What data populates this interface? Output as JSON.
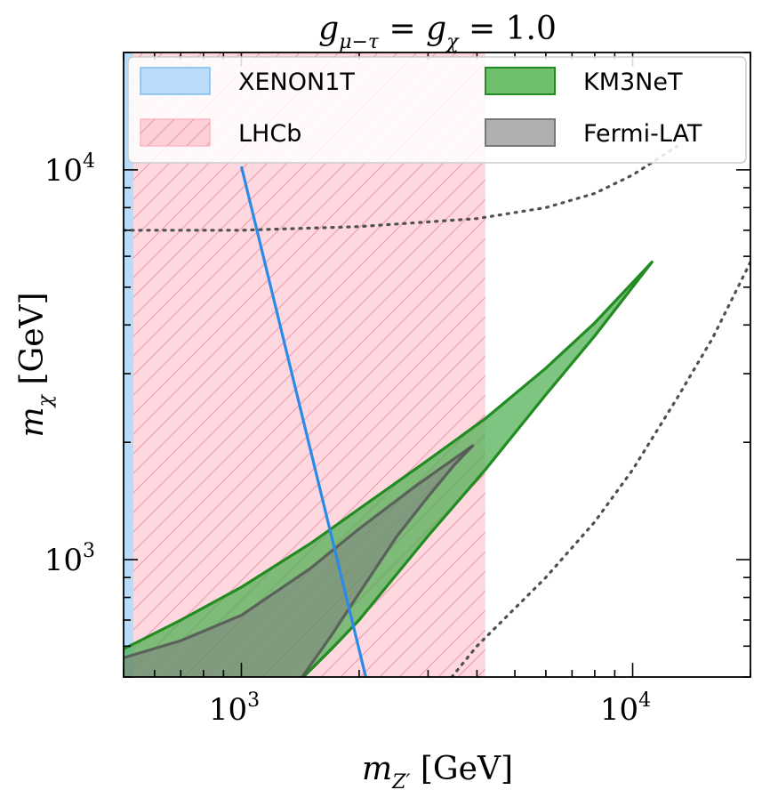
{
  "chart_data": {
    "type": "area",
    "title": "g_{μ−τ} = g_χ = 1.0",
    "title_parts": {
      "g1": "g",
      "sub1": "μ−τ",
      "eq1": " = ",
      "g2": "g",
      "sub2": "χ",
      "eq2": " = 1.0"
    },
    "xlabel_parts": {
      "m": "m",
      "sub": "Z′",
      "unit": " [GeV]"
    },
    "ylabel_parts": {
      "m": "m",
      "sub": "χ",
      "unit": " [GeV]"
    },
    "xscale": "log",
    "yscale": "log",
    "xlim": [
      500,
      20000
    ],
    "ylim": [
      500,
      20000
    ],
    "x_major_ticks": [
      {
        "value": 1000,
        "base": "10",
        "exp": "3"
      },
      {
        "value": 10000,
        "base": "10",
        "exp": "4"
      }
    ],
    "y_major_ticks": [
      {
        "value": 1000,
        "base": "10",
        "exp": "3"
      },
      {
        "value": 10000,
        "base": "10",
        "exp": "4"
      }
    ],
    "legend_position": "top",
    "legend": [
      {
        "label": "XENON1T",
        "color": "#93c8f5",
        "style": "fill"
      },
      {
        "label": "KM3NeT",
        "color": "#3d9a3d",
        "style": "fill"
      },
      {
        "label": "LHCb",
        "color": "#ffc0cb",
        "style": "hatched"
      },
      {
        "label": "Fermi-LAT",
        "color": "#808080",
        "style": "fill"
      }
    ],
    "series": [
      {
        "name": "XENON1T",
        "kind": "band",
        "color": "#b8dcfa",
        "x_range": [
          500,
          530
        ]
      },
      {
        "name": "XENON1T",
        "kind": "line",
        "color": "#2b8ae8",
        "x": [
          1000,
          2080
        ],
        "y": [
          10200,
          500
        ]
      },
      {
        "name": "LHCb",
        "kind": "band",
        "color": "#ffc0cb",
        "hatch_color": "#e8a0ae",
        "x_range": [
          530,
          4200
        ]
      },
      {
        "name": "KM3NeT",
        "kind": "region",
        "color": "#228b22",
        "fill": "#4caf50",
        "upper": {
          "x": [
            500,
            700,
            1000,
            1500,
            2000,
            3000,
            4200,
            6000,
            8000,
            11200
          ],
          "y": [
            590,
            700,
            850,
            1100,
            1350,
            1800,
            2300,
            3100,
            4050,
            5800
          ]
        },
        "lower": {
          "x": [
            1440,
            1700,
            2000,
            3000,
            4200,
            6000,
            8000,
            11200
          ],
          "y": [
            500,
            590,
            700,
            1150,
            1700,
            2650,
            3750,
            5800
          ]
        }
      },
      {
        "name": "Fermi-LAT",
        "kind": "region",
        "color": "#555555",
        "fill": "#808080",
        "upper": {
          "x": [
            500,
            700,
            1000,
            1500,
            2000,
            2800,
            3900
          ],
          "y": [
            560,
            620,
            720,
            950,
            1200,
            1550,
            1960
          ]
        },
        "lower": {
          "x": [
            1430,
            1700,
            2000,
            2500,
            3000,
            3500,
            3900
          ],
          "y": [
            500,
            640,
            820,
            1150,
            1450,
            1750,
            1960
          ]
        }
      },
      {
        "name": "",
        "kind": "dotted-line",
        "color": "#505050",
        "x": [
          500,
          1000,
          2000,
          4000,
          6000,
          8000,
          10000,
          13000
        ],
        "y": [
          7000,
          7000,
          7150,
          7500,
          8000,
          8700,
          9700,
          11500
        ]
      },
      {
        "name": "",
        "kind": "dotted-line",
        "color": "#505050",
        "x": [
          3450,
          4000,
          6000,
          8000,
          10000,
          13000,
          16000,
          20000
        ],
        "y": [
          500,
          600,
          900,
          1250,
          1700,
          2600,
          3700,
          5800
        ]
      }
    ]
  }
}
